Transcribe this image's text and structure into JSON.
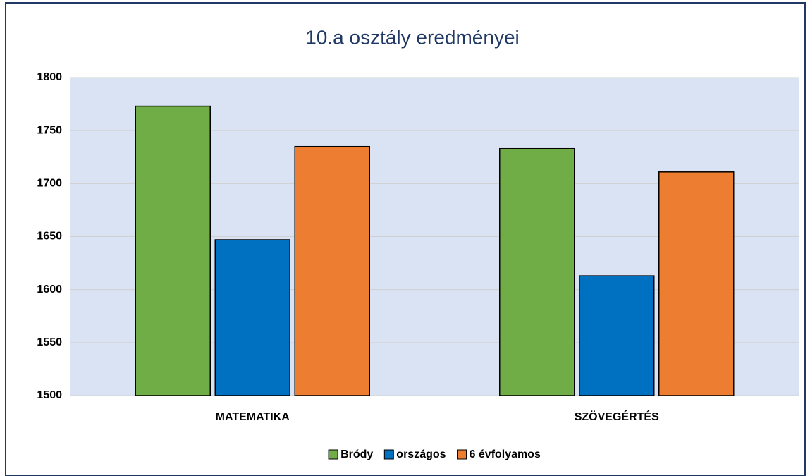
{
  "chart_data": {
    "type": "bar",
    "title": "10.a osztály eredményei",
    "categories": [
      "MATEMATIKA",
      "SZÖVEGÉRTÉS"
    ],
    "series": [
      {
        "name": "Bródy",
        "color": "#70ad47",
        "values": [
          1773,
          1733
        ]
      },
      {
        "name": "országos",
        "color": "#0070c0",
        "values": [
          1647,
          1613
        ]
      },
      {
        "name": "6 évfolyamos",
        "color": "#ed7d31",
        "values": [
          1735,
          1711
        ]
      }
    ],
    "ylim": [
      1500,
      1800
    ],
    "yticks": [
      1500,
      1550,
      1600,
      1650,
      1700,
      1750,
      1800
    ],
    "grid": true,
    "legend": "bottom"
  }
}
